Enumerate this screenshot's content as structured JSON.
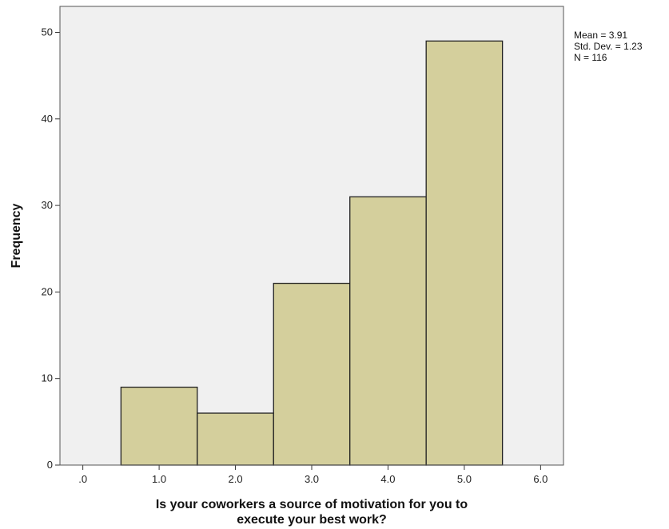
{
  "chart_data": {
    "type": "bar",
    "subtype": "histogram",
    "bins": [
      {
        "center": 1.0,
        "frequency": 9
      },
      {
        "center": 2.0,
        "frequency": 6
      },
      {
        "center": 3.0,
        "frequency": 21
      },
      {
        "center": 4.0,
        "frequency": 31
      },
      {
        "center": 5.0,
        "frequency": 49
      }
    ],
    "bin_width": 1.0,
    "xlabel_lines": [
      "Is your coworkers a source of motivation for you to",
      "execute your best work?"
    ],
    "ylabel": "Frequency",
    "xlim": [
      -0.3,
      6.3
    ],
    "ylim": [
      0,
      53
    ],
    "x_ticks": [
      {
        "value": 0,
        "label": ".0"
      },
      {
        "value": 1,
        "label": "1.0"
      },
      {
        "value": 2,
        "label": "2.0"
      },
      {
        "value": 3,
        "label": "3.0"
      },
      {
        "value": 4,
        "label": "4.0"
      },
      {
        "value": 5,
        "label": "5.0"
      },
      {
        "value": 6,
        "label": "6.0"
      }
    ],
    "y_ticks": [
      0,
      10,
      20,
      30,
      40,
      50
    ],
    "stats": [
      "Mean = 3.91",
      "Std. Dev. = 1.23",
      "N = 116"
    ],
    "grid": false,
    "colors": {
      "bar_fill": "#d4cf9c",
      "bar_stroke": "#222222",
      "plot_background": "#f0f0f0",
      "frame": "#555555"
    }
  }
}
